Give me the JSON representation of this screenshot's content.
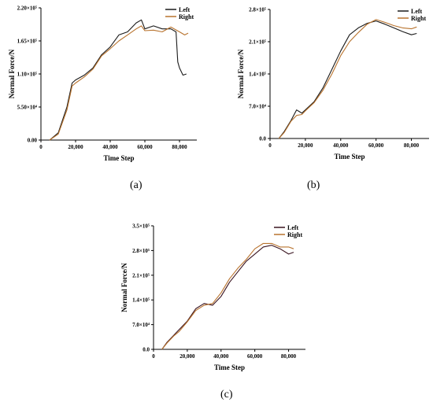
{
  "chart_data": [
    {
      "type": "line",
      "panel_label": "(a)",
      "xlabel": "Time Step",
      "ylabel": "Normal Force/N",
      "xlim": [
        0,
        90000
      ],
      "ylim": [
        0,
        220000
      ],
      "xticks": [
        0,
        20000,
        40000,
        60000,
        80000
      ],
      "xtick_labels": [
        "0",
        "20,000",
        "40,000",
        "60,000",
        "80,000"
      ],
      "yticks": [
        0,
        55000,
        110000,
        165000,
        220000
      ],
      "ytick_labels": [
        "0.00",
        "5.50×10⁴",
        "1.10×10⁵",
        "1.65×10⁵",
        "2.20×10⁵"
      ],
      "legend_position": "top-right",
      "series": [
        {
          "name": "Left",
          "color": "#1a1a1a",
          "x": [
            5000,
            10000,
            15000,
            18000,
            20000,
            25000,
            30000,
            35000,
            40000,
            45000,
            50000,
            55000,
            58000,
            60000,
            65000,
            70000,
            75000,
            78000,
            79000,
            80000,
            82000,
            84000
          ],
          "y": [
            0,
            12000,
            55000,
            95000,
            100000,
            108000,
            120000,
            142000,
            155000,
            175000,
            180000,
            195000,
            200000,
            185000,
            190000,
            185000,
            185000,
            180000,
            130000,
            120000,
            108000,
            110000
          ]
        },
        {
          "name": "Right",
          "color": "#b8732e",
          "x": [
            5000,
            10000,
            15000,
            18000,
            20000,
            25000,
            30000,
            35000,
            40000,
            45000,
            50000,
            55000,
            58000,
            60000,
            65000,
            70000,
            75000,
            80000,
            83000,
            85000
          ],
          "y": [
            0,
            10000,
            50000,
            90000,
            95000,
            105000,
            118000,
            140000,
            152000,
            165000,
            175000,
            185000,
            190000,
            182000,
            183000,
            180000,
            188000,
            180000,
            175000,
            178000
          ]
        }
      ]
    },
    {
      "type": "line",
      "panel_label": "(b)",
      "xlabel": "Time Step",
      "ylabel": "Normal Force/N",
      "xlim": [
        0,
        90000
      ],
      "ylim": [
        0,
        280000
      ],
      "xticks": [
        0,
        20000,
        40000,
        60000,
        80000
      ],
      "xtick_labels": [
        "0",
        "20,000",
        "40,000",
        "60,000",
        "80,000"
      ],
      "yticks": [
        0,
        70000,
        140000,
        210000,
        280000
      ],
      "ytick_labels": [
        "0.0",
        "7.0×10⁴",
        "1.4×10⁵",
        "2.1×10⁵",
        "2.8×10⁵"
      ],
      "legend_position": "top-right",
      "series": [
        {
          "name": "Left",
          "color": "#1a1a1a",
          "x": [
            5000,
            8000,
            12000,
            15000,
            18000,
            20000,
            25000,
            30000,
            35000,
            40000,
            45000,
            50000,
            55000,
            60000,
            65000,
            70000,
            75000,
            80000,
            83000
          ],
          "y": [
            0,
            15000,
            40000,
            62000,
            55000,
            62000,
            80000,
            110000,
            150000,
            190000,
            225000,
            240000,
            250000,
            255000,
            248000,
            240000,
            232000,
            225000,
            228000
          ]
        },
        {
          "name": "Right",
          "color": "#b8732e",
          "x": [
            5000,
            8000,
            12000,
            15000,
            18000,
            20000,
            25000,
            30000,
            35000,
            40000,
            45000,
            50000,
            55000,
            60000,
            65000,
            70000,
            75000,
            80000,
            83000
          ],
          "y": [
            0,
            13000,
            38000,
            50000,
            52000,
            60000,
            78000,
            105000,
            140000,
            180000,
            210000,
            230000,
            248000,
            258000,
            252000,
            245000,
            240000,
            238000,
            242000
          ]
        }
      ]
    },
    {
      "type": "line",
      "panel_label": "(c)",
      "xlabel": "Time Step",
      "ylabel": "Normal Force/N",
      "xlim": [
        0,
        90000
      ],
      "ylim": [
        0,
        350000
      ],
      "xticks": [
        0,
        20000,
        40000,
        60000,
        80000
      ],
      "xtick_labels": [
        "0",
        "20,000",
        "40,000",
        "60,000",
        "80,000"
      ],
      "yticks": [
        0,
        70000,
        140000,
        210000,
        280000,
        350000
      ],
      "ytick_labels": [
        "0.0",
        "7.0×10⁴",
        "1.4×10⁵",
        "2.1×10⁵",
        "2.8×10⁵",
        "3.5×10⁵"
      ],
      "legend_position": "top-right",
      "series": [
        {
          "name": "Left",
          "color": "#3a1420",
          "x": [
            5000,
            8000,
            12000,
            15000,
            20000,
            25000,
            30000,
            35000,
            40000,
            45000,
            50000,
            55000,
            60000,
            65000,
            70000,
            75000,
            80000,
            83000
          ],
          "y": [
            0,
            20000,
            40000,
            55000,
            80000,
            115000,
            130000,
            125000,
            150000,
            190000,
            220000,
            250000,
            270000,
            290000,
            295000,
            285000,
            270000,
            275000
          ]
        },
        {
          "name": "Right",
          "color": "#b8732e",
          "x": [
            5000,
            8000,
            12000,
            15000,
            20000,
            25000,
            30000,
            35000,
            40000,
            45000,
            50000,
            55000,
            60000,
            65000,
            70000,
            75000,
            80000,
            83000
          ],
          "y": [
            0,
            18000,
            38000,
            50000,
            78000,
            110000,
            125000,
            130000,
            160000,
            200000,
            230000,
            255000,
            285000,
            300000,
            300000,
            290000,
            290000,
            285000
          ]
        }
      ]
    }
  ]
}
